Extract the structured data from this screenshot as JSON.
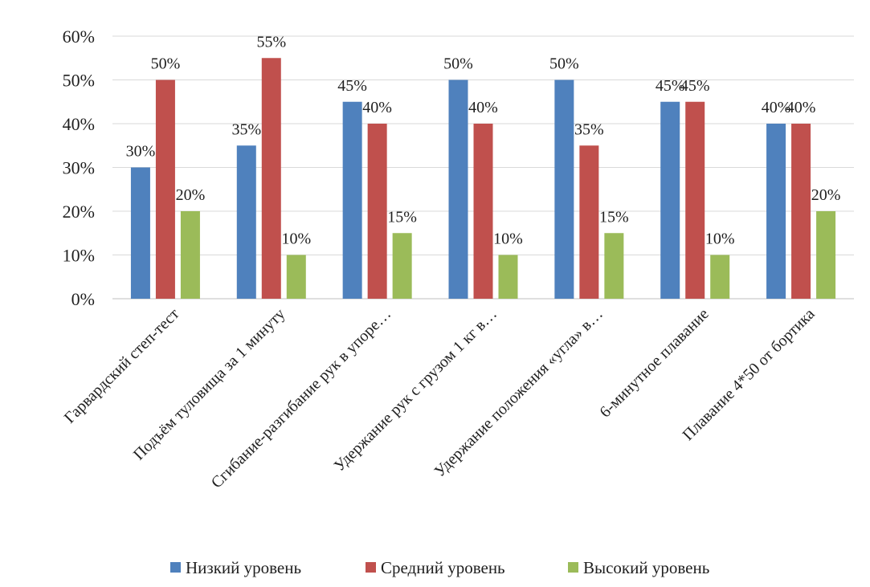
{
  "chart_data": {
    "type": "bar",
    "title": "",
    "xlabel": "",
    "ylabel": "",
    "ylim": [
      0,
      60
    ],
    "y_ticks": [
      0,
      10,
      20,
      30,
      40,
      50,
      60
    ],
    "y_tick_labels": [
      "0%",
      "10%",
      "20%",
      "30%",
      "40%",
      "50%",
      "60%"
    ],
    "grid": true,
    "legend_position": "bottom",
    "categories": [
      "Гарвардский степ-тест",
      "Подъём туловища за 1 минуту",
      "Сгибание-разгибание рук в упоре…",
      "Удержание рук с грузом 1 кг в…",
      "Удержание положения «угла» в…",
      "6-минутное плавание",
      "Плавание 4*50 от бортика"
    ],
    "series": [
      {
        "name": "Низкий уровень",
        "color": "#4F81BD",
        "values": [
          30,
          35,
          45,
          50,
          50,
          45,
          40
        ],
        "labels": [
          "30%",
          "35%",
          "45%",
          "50%",
          "50%",
          "45%",
          "40%"
        ]
      },
      {
        "name": "Средний уровень",
        "color": "#C0504D",
        "values": [
          50,
          55,
          40,
          40,
          35,
          45,
          40
        ],
        "labels": [
          "50%",
          "55%",
          "40%",
          "40%",
          "35%",
          "45%",
          "40%"
        ]
      },
      {
        "name": "Высокий уровень",
        "color": "#9BBB59",
        "values": [
          20,
          10,
          15,
          10,
          15,
          10,
          20
        ],
        "labels": [
          "20%",
          "10%",
          "15%",
          "10%",
          "15%",
          "10%",
          "20%"
        ]
      }
    ]
  }
}
